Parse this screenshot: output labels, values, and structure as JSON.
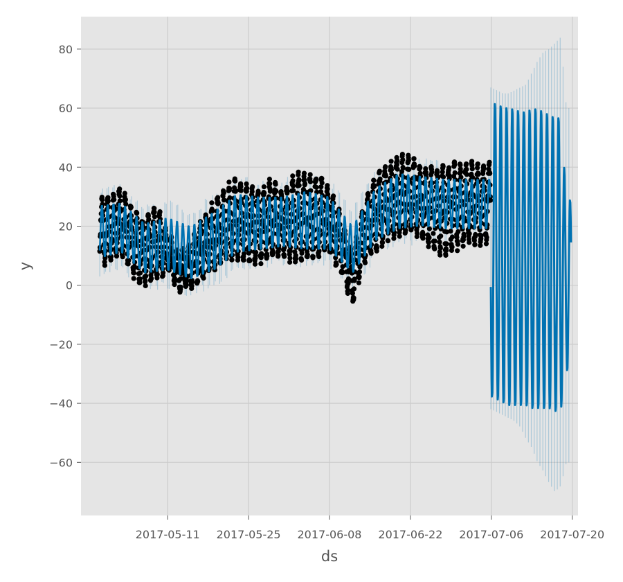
{
  "chart_data": {
    "type": "line",
    "xlabel": "ds",
    "ylabel": "y",
    "x_range": [
      "2017-04-26",
      "2017-07-21"
    ],
    "ylim": [
      -78,
      91
    ],
    "grid": true,
    "background": "#e5e5e5",
    "colors": {
      "actual_points": "#000000",
      "forecast_line": "#0072b2",
      "uncertainty_band": "#0072b2"
    },
    "x_ticks": [
      "2017-05-11",
      "2017-05-25",
      "2017-06-08",
      "2017-06-22",
      "2017-07-06",
      "2017-07-20"
    ],
    "y_ticks": [
      80,
      60,
      40,
      20,
      0,
      -20,
      -40,
      -60
    ],
    "y_tick_labels": [
      "80",
      "60",
      "40",
      "20",
      "0",
      "−20",
      "−40",
      "−60"
    ],
    "history_range": [
      "2017-04-29",
      "2017-07-05"
    ],
    "forecast_range": [
      "2017-07-05",
      "2017-07-19"
    ],
    "series": [
      {
        "role": "actual",
        "dates": [
          "2017-04-29",
          "2017-05-01",
          "2017-05-03",
          "2017-05-05",
          "2017-05-07",
          "2017-05-09",
          "2017-05-11",
          "2017-05-13",
          "2017-05-15",
          "2017-05-17",
          "2017-05-19",
          "2017-05-21",
          "2017-05-23",
          "2017-05-25",
          "2017-05-27",
          "2017-05-29",
          "2017-05-31",
          "2017-06-02",
          "2017-06-04",
          "2017-06-06",
          "2017-06-08",
          "2017-06-10",
          "2017-06-12",
          "2017-06-14",
          "2017-06-16",
          "2017-06-18",
          "2017-06-20",
          "2017-06-22",
          "2017-06-24",
          "2017-06-26",
          "2017-06-28",
          "2017-06-30",
          "2017-07-02",
          "2017-07-04",
          "2017-07-05"
        ],
        "daily_max": [
          28,
          30,
          33,
          25,
          21,
          28,
          18,
          10,
          14,
          22,
          28,
          33,
          35,
          33,
          31,
          36,
          31,
          37,
          37,
          37,
          33,
          23,
          10,
          27,
          37,
          40,
          43,
          43,
          39,
          39,
          40,
          41,
          41,
          40,
          41
        ],
        "daily_min": [
          7,
          9,
          10,
          4,
          0,
          3,
          5,
          -1,
          0,
          2,
          6,
          9,
          10,
          8,
          8,
          10,
          11,
          8,
          10,
          10,
          11,
          4,
          -6,
          8,
          12,
          16,
          18,
          19,
          17,
          12,
          11,
          13,
          15,
          14,
          15
        ]
      },
      {
        "role": "forecast",
        "dates": [
          "2017-04-29",
          "2017-05-03",
          "2017-05-07",
          "2017-05-11",
          "2017-05-15",
          "2017-05-19",
          "2017-05-23",
          "2017-05-27",
          "2017-05-31",
          "2017-06-04",
          "2017-06-08",
          "2017-06-12",
          "2017-06-16",
          "2017-06-20",
          "2017-06-24",
          "2017-06-28",
          "2017-07-02",
          "2017-07-05"
        ],
        "daily_max": [
          27,
          28,
          21,
          23,
          20,
          25,
          31,
          30,
          30,
          32,
          30,
          20,
          33,
          38,
          37,
          36,
          36,
          36
        ],
        "daily_min": [
          9,
          11,
          4,
          5,
          2,
          5,
          11,
          12,
          13,
          12,
          12,
          4,
          15,
          19,
          20,
          19,
          19,
          19
        ]
      },
      {
        "role": "forecast_future",
        "dates": [
          "2017-07-06",
          "2017-07-07",
          "2017-07-08",
          "2017-07-09",
          "2017-07-10",
          "2017-07-11",
          "2017-07-12",
          "2017-07-13",
          "2017-07-14",
          "2017-07-15",
          "2017-07-16",
          "2017-07-17",
          "2017-07-18",
          "2017-07-19"
        ],
        "daily_max": [
          63,
          61,
          61,
          60,
          60,
          59,
          59,
          60,
          60,
          59,
          58,
          57,
          57,
          29
        ],
        "daily_min": [
          -38,
          -39,
          -40,
          -41,
          -41,
          -41,
          -41,
          -42,
          -42,
          -42,
          -42,
          -43,
          -43,
          -29
        ],
        "upper": [
          67,
          66,
          65,
          65,
          66,
          67,
          68,
          72,
          76,
          79,
          80,
          82,
          84,
          60
        ],
        "lower": [
          -42,
          -43,
          -44,
          -45,
          -46,
          -48,
          -52,
          -55,
          -60,
          -63,
          -67,
          -70,
          -68,
          -60
        ]
      }
    ]
  }
}
